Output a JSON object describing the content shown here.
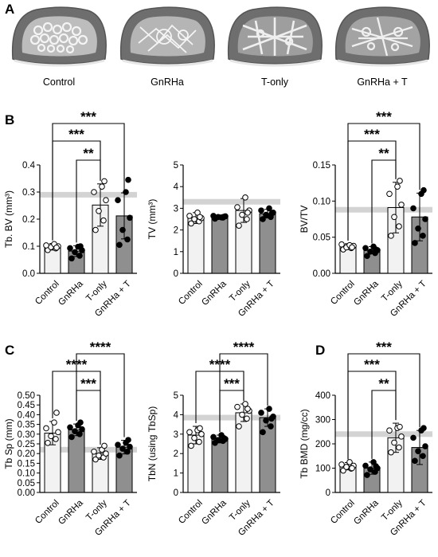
{
  "panel_labels": {
    "A": "A",
    "B": "B",
    "C": "C",
    "D": "D"
  },
  "scans": [
    {
      "label": "Control"
    },
    {
      "label": "GnRHa"
    },
    {
      "label": "T-only"
    },
    {
      "label": "GnRHa + T"
    }
  ],
  "colors": {
    "control": "#f2f2f2",
    "gnrha": "#8f8f8f",
    "tonly": "#f2f2f2",
    "gnrha_t": "#8f8f8f",
    "reference_band": "#d3d3d3"
  },
  "chart_data": [
    {
      "id": "tb-bv",
      "type": "bar",
      "panel": "B",
      "categories": [
        "Control",
        "GnRHa",
        "T-only",
        "GnRHa + T"
      ],
      "ylabel": "Tb. BV (mm³)",
      "ylim": [
        0,
        0.4
      ],
      "yticks": [
        0.0,
        0.1,
        0.2,
        0.3,
        0.4
      ],
      "tick_labels": [
        "0.0",
        "0.1",
        "0.2",
        "0.3",
        "0.4"
      ],
      "reference_band": 0.29,
      "values": [
        0.098,
        0.082,
        0.252,
        0.212
      ],
      "errors": [
        0.012,
        0.02,
        0.078,
        0.085
      ],
      "points": [
        [
          0.086,
          0.092,
          0.097,
          0.1,
          0.103,
          0.108,
          0.095
        ],
        [
          0.055,
          0.065,
          0.078,
          0.085,
          0.093,
          0.098,
          0.1
        ],
        [
          0.16,
          0.195,
          0.23,
          0.27,
          0.3,
          0.32,
          0.34
        ],
        [
          0.105,
          0.125,
          0.16,
          0.205,
          0.27,
          0.3,
          0.345
        ]
      ],
      "significance": [
        {
          "from": 0,
          "to": 2,
          "label": "***"
        },
        {
          "from": 1,
          "to": 2,
          "label": "**"
        },
        {
          "from": 0,
          "to": 3,
          "label": "***"
        }
      ]
    },
    {
      "id": "tv",
      "type": "bar",
      "panel": "B",
      "categories": [
        "Control",
        "GnRHa",
        "T-only",
        "GnRHa + T"
      ],
      "ylabel": "TV (mm³)",
      "ylim": [
        0,
        5
      ],
      "yticks": [
        0,
        1,
        2,
        3,
        4,
        5
      ],
      "tick_labels": [
        "0",
        "1",
        "2",
        "3",
        "4",
        "5"
      ],
      "reference_band": 3.3,
      "values": [
        2.55,
        2.6,
        2.9,
        2.75
      ],
      "errors": [
        0.25,
        0.07,
        0.55,
        0.2
      ],
      "points": [
        [
          2.3,
          2.4,
          2.5,
          2.55,
          2.65,
          2.8,
          2.6
        ],
        [
          2.52,
          2.57,
          2.6,
          2.63,
          2.65,
          2.58,
          2.61
        ],
        [
          2.2,
          2.5,
          2.7,
          2.9,
          3.05,
          3.5,
          2.8
        ],
        [
          2.5,
          2.6,
          2.7,
          2.8,
          2.9,
          3.0,
          2.75
        ]
      ],
      "significance": []
    },
    {
      "id": "bv-tv",
      "type": "bar",
      "panel": "B",
      "categories": [
        "Control",
        "GnRHa",
        "T-only",
        "GnRHa + T"
      ],
      "ylabel": "BV/TV",
      "ylim": [
        0,
        0.15
      ],
      "yticks": [
        0.0,
        0.05,
        0.1,
        0.15
      ],
      "tick_labels": [
        "0.00",
        "0.05",
        "0.10",
        "0.15"
      ],
      "reference_band": 0.088,
      "values": [
        0.037,
        0.032,
        0.091,
        0.078
      ],
      "errors": [
        0.004,
        0.005,
        0.035,
        0.033
      ],
      "points": [
        [
          0.033,
          0.035,
          0.036,
          0.038,
          0.04,
          0.039,
          0.036
        ],
        [
          0.024,
          0.028,
          0.03,
          0.032,
          0.035,
          0.037,
          0.033
        ],
        [
          0.052,
          0.065,
          0.078,
          0.095,
          0.11,
          0.12,
          0.128
        ],
        [
          0.042,
          0.052,
          0.062,
          0.075,
          0.09,
          0.11,
          0.115
        ]
      ],
      "significance": [
        {
          "from": 0,
          "to": 2,
          "label": "***"
        },
        {
          "from": 1,
          "to": 2,
          "label": "**"
        },
        {
          "from": 0,
          "to": 3,
          "label": "***"
        }
      ]
    },
    {
      "id": "tb-sp",
      "type": "bar",
      "panel": "C",
      "categories": [
        "Control",
        "GnRHa",
        "T-only",
        "GnRHa + T"
      ],
      "ylabel": "Tb Sp (mm)",
      "ylim": [
        0,
        0.5
      ],
      "yticks": [
        0.0,
        0.05,
        0.1,
        0.15,
        0.2,
        0.25,
        0.3,
        0.35,
        0.4,
        0.45,
        0.5
      ],
      "tick_labels": [
        "0.00",
        "0.05",
        "0.10",
        "0.15",
        "0.20",
        "0.25",
        "0.30",
        "0.35",
        "0.40",
        "0.45",
        "0.50"
      ],
      "reference_band": 0.22,
      "values": [
        0.305,
        0.322,
        0.2,
        0.233
      ],
      "errors": [
        0.06,
        0.03,
        0.03,
        0.035
      ],
      "points": [
        [
          0.255,
          0.275,
          0.29,
          0.31,
          0.33,
          0.36,
          0.41
        ],
        [
          0.285,
          0.3,
          0.315,
          0.325,
          0.335,
          0.345,
          0.36
        ],
        [
          0.17,
          0.18,
          0.19,
          0.2,
          0.21,
          0.22,
          0.24
        ],
        [
          0.19,
          0.21,
          0.225,
          0.235,
          0.245,
          0.255,
          0.27
        ]
      ],
      "significance": [
        {
          "from": 0,
          "to": 2,
          "label": "****"
        },
        {
          "from": 1,
          "to": 2,
          "label": "***"
        },
        {
          "from": 1,
          "to": 3,
          "label": "****"
        }
      ]
    },
    {
      "id": "tb-n",
      "type": "bar",
      "panel": "C",
      "categories": [
        "Control",
        "GnRHa",
        "T-only",
        "GnRHa + T"
      ],
      "ylabel": "TbN (using TbSp)",
      "ylim": [
        0,
        5
      ],
      "yticks": [
        0,
        1,
        2,
        3,
        4,
        5
      ],
      "tick_labels": [
        "0",
        "1",
        "2",
        "3",
        "4",
        "5"
      ],
      "reference_band": 3.85,
      "values": [
        2.95,
        2.75,
        4.1,
        3.85
      ],
      "errors": [
        0.45,
        0.2,
        0.45,
        0.45
      ],
      "points": [
        [
          2.4,
          2.6,
          2.8,
          3.0,
          3.1,
          3.2,
          3.3
        ],
        [
          2.55,
          2.65,
          2.7,
          2.75,
          2.85,
          2.95,
          2.8
        ],
        [
          3.4,
          3.8,
          4.0,
          4.2,
          4.4,
          4.55,
          4.3
        ],
        [
          3.1,
          3.4,
          3.7,
          3.9,
          4.1,
          4.3,
          3.8
        ]
      ],
      "significance": [
        {
          "from": 0,
          "to": 2,
          "label": "****"
        },
        {
          "from": 1,
          "to": 2,
          "label": "***"
        },
        {
          "from": 1,
          "to": 3,
          "label": "****"
        }
      ]
    },
    {
      "id": "tb-bmd",
      "type": "bar",
      "panel": "D",
      "categories": [
        "Control",
        "GnRHa",
        "T-only",
        "GnRHa + T"
      ],
      "ylabel": "Tb BMD (mg/cc)",
      "ylim": [
        0,
        400
      ],
      "yticks": [
        0,
        100,
        200,
        300,
        400
      ],
      "tick_labels": [
        "0",
        "100",
        "200",
        "300",
        "400"
      ],
      "reference_band": 240,
      "values": [
        108,
        100,
        225,
        185
      ],
      "errors": [
        15,
        25,
        60,
        70
      ],
      "points": [
        [
          90,
          98,
          105,
          110,
          115,
          125,
          100
        ],
        [
          72,
          85,
          95,
          100,
          110,
          125,
          108
        ],
        [
          165,
          185,
          205,
          230,
          255,
          265,
          270
        ],
        [
          130,
          150,
          170,
          190,
          225,
          255,
          265
        ]
      ],
      "significance": [
        {
          "from": 0,
          "to": 2,
          "label": "***"
        },
        {
          "from": 1,
          "to": 2,
          "label": "**"
        },
        {
          "from": 0,
          "to": 3,
          "label": "***"
        }
      ]
    }
  ]
}
